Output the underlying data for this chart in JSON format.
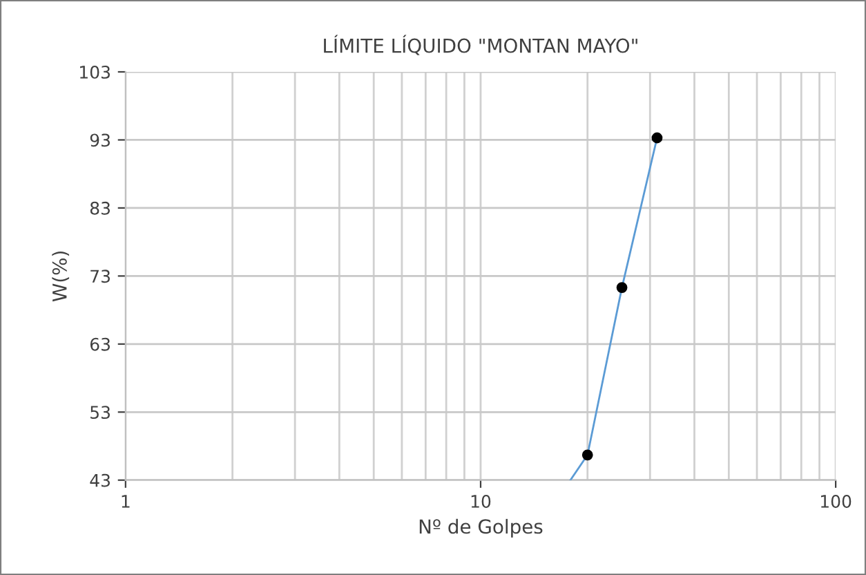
{
  "chart_data": {
    "type": "scatter",
    "title": "LÍMITE LÍQUIDO \"MONTAN MAYO\"",
    "xlabel": "Nº de Golpes",
    "ylabel": "W(%)",
    "log": "x",
    "grid": true,
    "xlim": [
      1,
      100
    ],
    "xticks": [
      1,
      10,
      100
    ],
    "ylim": [
      43,
      103
    ],
    "yticks": [
      43,
      53,
      63,
      73,
      83,
      93,
      103
    ],
    "series": [
      {
        "type": "line",
        "color": "#5b9bd5",
        "marker": "none",
        "x": [
          17.9,
          20,
          25,
          31.4
        ],
        "values": [
          43,
          46.7,
          71.3,
          93.3
        ]
      },
      {
        "marker": "circle",
        "color": "#000000",
        "x": [
          20,
          25,
          31.4
        ],
        "values": [
          46.7,
          71.3,
          93.3
        ]
      }
    ]
  }
}
